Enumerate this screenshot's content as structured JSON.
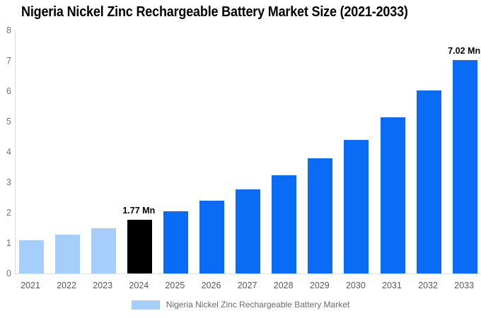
{
  "header": {
    "title": "Nigeria Nickel Zinc Rechargeable Battery Market Size (2021-2033)"
  },
  "chart_data": {
    "type": "bar",
    "title": "Nigeria Nickel Zinc Rechargeable Battery Market Size (2021-2033)",
    "categories": [
      "2021",
      "2022",
      "2023",
      "2024",
      "2025",
      "2026",
      "2027",
      "2028",
      "2029",
      "2030",
      "2031",
      "2032",
      "2033"
    ],
    "series": [
      {
        "name": "Nigeria Nickel Zinc Rechargeable Battery Market",
        "unit": "Mn",
        "values": [
          1.1,
          1.27,
          1.5,
          1.77,
          2.05,
          2.39,
          2.77,
          3.24,
          3.79,
          4.4,
          5.15,
          6.02,
          7.02
        ]
      }
    ],
    "bar_colors": [
      "#A5CFFA",
      "#A5CFFA",
      "#A5CFFA",
      "#000000",
      "#0A6BF4",
      "#0A6BF4",
      "#0A6BF4",
      "#0A6BF4",
      "#0A6BF4",
      "#0A6BF4",
      "#0A6BF4",
      "#0A6BF4",
      "#0A6BF4"
    ],
    "data_labels": [
      "",
      "",
      "",
      "1.77 Mn",
      "",
      "",
      "",
      "",
      "",
      "",
      "",
      "",
      "7.02 Mn"
    ],
    "ylim": [
      0,
      8
    ],
    "yticks": [
      0,
      1,
      2,
      3,
      4,
      5,
      6,
      7,
      8
    ],
    "grid": false,
    "xlabel": "",
    "ylabel": "",
    "legend": {
      "position": "bottom",
      "entries": [
        {
          "label": "Nigeria Nickel Zinc Rechargeable Battery Market",
          "swatch_color": "#A5CFFA"
        }
      ]
    }
  },
  "colors": {
    "axis_line": "#DCDCDC",
    "baseline": "#E3E3E3",
    "tick_text": "#757575",
    "x_label_text": "#595959",
    "legend_text": "#6B6B6B",
    "value_label_text": "#000000"
  }
}
